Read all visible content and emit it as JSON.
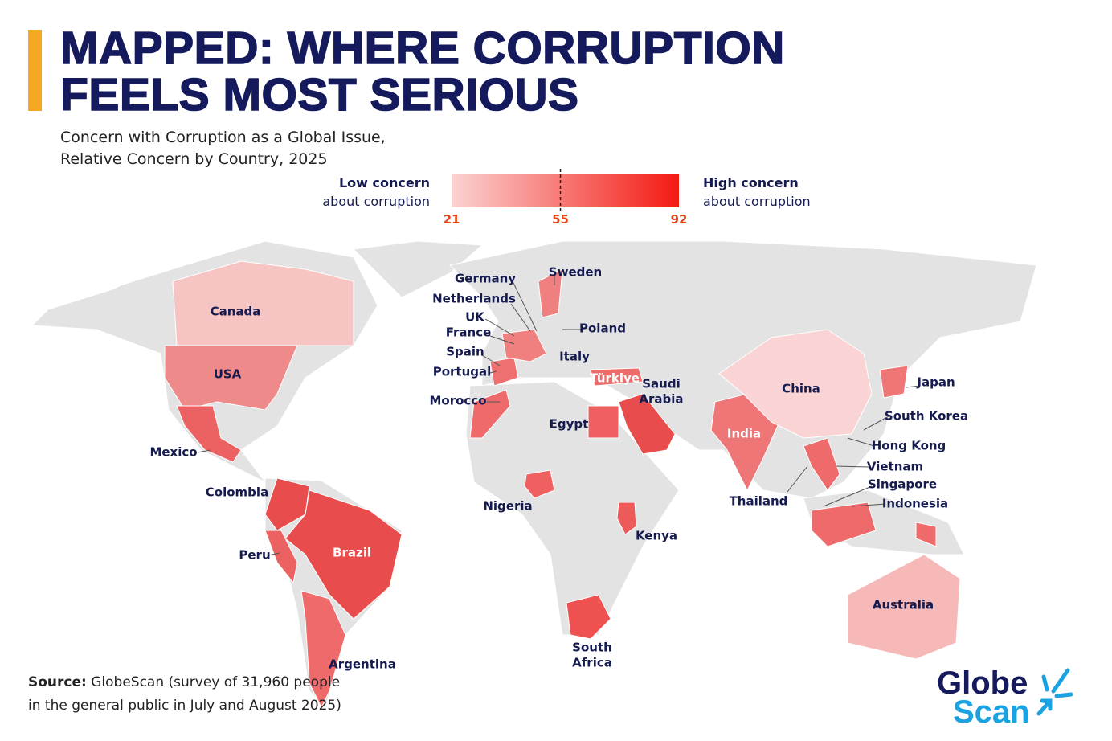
{
  "header": {
    "title_line1": "MAPPED: WHERE CORRUPTION",
    "title_line2": "FEELS MOST SERIOUS",
    "subtitle_line1": "Concern with Corruption as a Global Issue,",
    "subtitle_line2": "Relative Concern by Country, 2025"
  },
  "legend": {
    "low_label_1": "Low concern",
    "low_label_2": "about corruption",
    "high_label_1": "High concern",
    "high_label_2": "about corruption",
    "scale": {
      "xlim": [
        21,
        92
      ],
      "ticks": [
        21,
        55,
        92
      ]
    }
  },
  "countries": [
    "Canada",
    "USA",
    "Mexico",
    "Colombia",
    "Peru",
    "Brazil",
    "Argentina",
    "Germany",
    "Netherlands",
    "UK",
    "France",
    "Spain",
    "Portugal",
    "Morocco",
    "Sweden",
    "Poland",
    "Italy",
    "Türkiye",
    "Saudi Arabia",
    "Egypt",
    "Nigeria",
    "Kenya",
    "South Africa",
    "India",
    "China",
    "Japan",
    "South Korea",
    "Hong Kong",
    "Vietnam",
    "Singapore",
    "Indonesia",
    "Thailand",
    "Australia"
  ],
  "source": {
    "label": "Source:",
    "text_line1": "GlobeScan (survey of 31,960 people",
    "text_line2": "in the general public in July and August 2025)"
  },
  "logo": {
    "line1": "Globe",
    "line2": "Scan"
  }
}
